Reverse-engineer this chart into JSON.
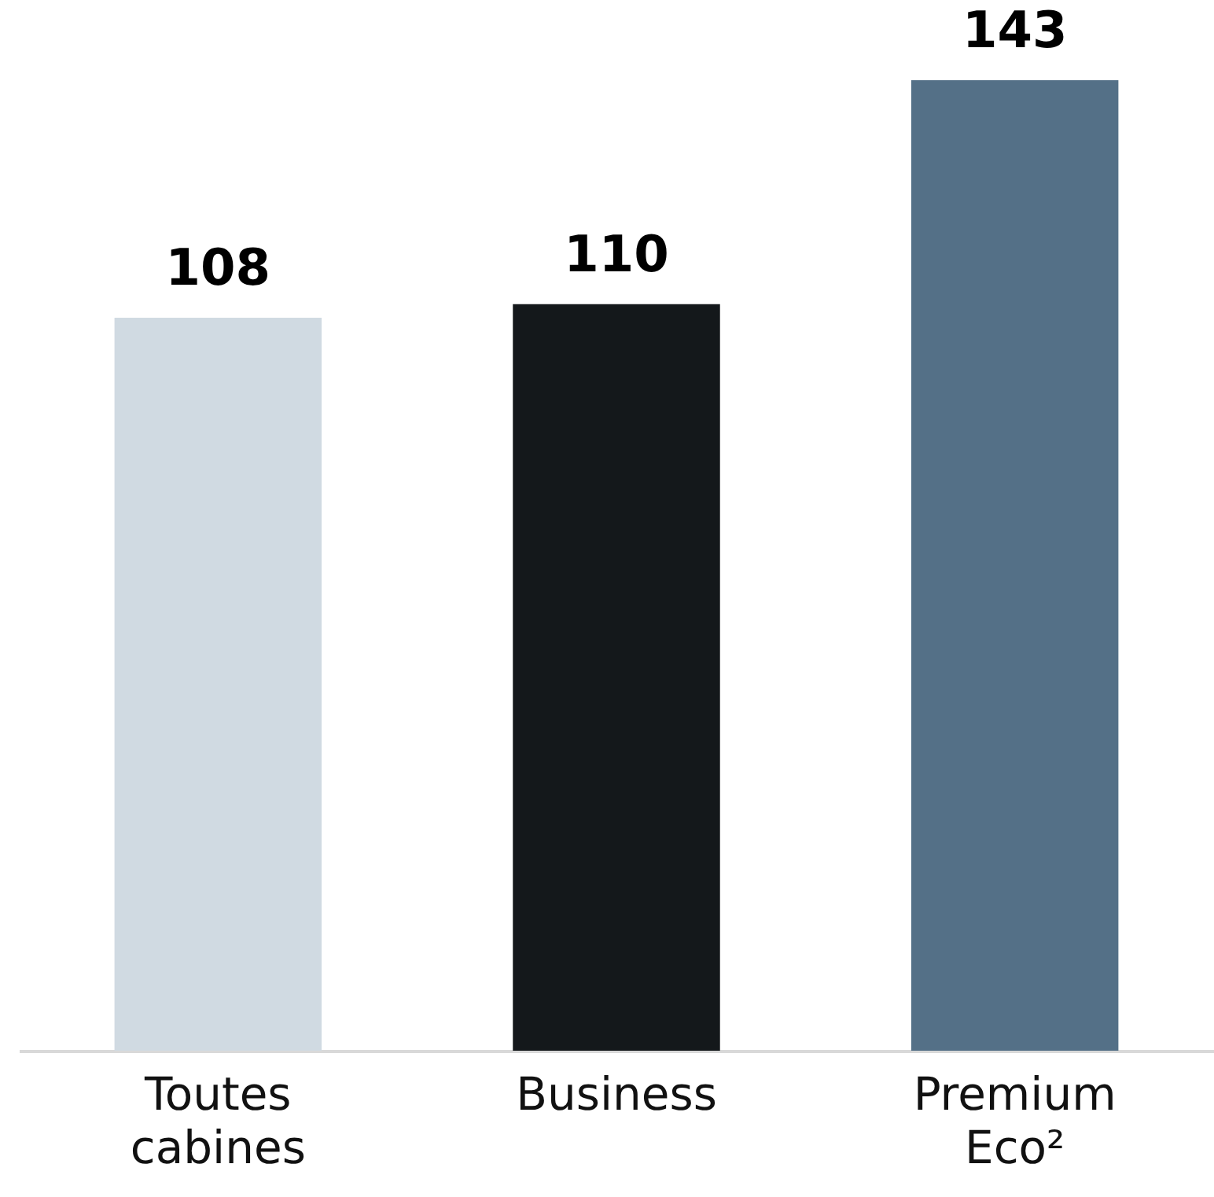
{
  "chart_data": {
    "type": "bar",
    "categories": [
      "Toutes cabines",
      "Business",
      "Premium Eco²"
    ],
    "values": [
      108,
      110,
      143
    ],
    "colors": [
      "#d0dae2",
      "#14181b",
      "#547087"
    ],
    "data_labels": true
  }
}
